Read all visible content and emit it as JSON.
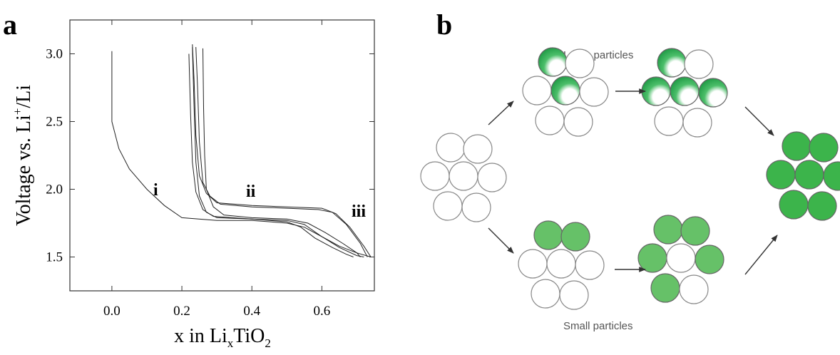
{
  "panel_labels": [
    "a",
    "b"
  ],
  "chart_data": {
    "type": "line",
    "xlabel": [
      "x in Li",
      "x",
      "TiO",
      "2"
    ],
    "ylabel": [
      "Voltage vs. Li",
      "+",
      "/Li"
    ],
    "xlim": [
      -0.12,
      0.75
    ],
    "ylim": [
      1.25,
      3.25
    ],
    "xticks": [
      {
        "value": 0,
        "label": "0.0"
      },
      0.2,
      0.4,
      0.6
    ],
    "yticks": [
      {
        "value": 1.5,
        "label": "1.5"
      },
      {
        "value": 2,
        "label": "2.0"
      },
      2.5,
      {
        "value": 3,
        "label": "3.0"
      }
    ],
    "annotations": [
      "i",
      "ii",
      "iii"
    ],
    "color": "#222222",
    "series": [
      {
        "x": [
          0,
          0,
          0,
          0.02,
          0.05,
          0.1,
          0.15,
          0.2,
          0.3,
          0.4,
          0.5,
          0.55,
          0.6,
          0.65,
          0.7,
          0.74
        ],
        "values": [
          3.02,
          2.8,
          2.5,
          2.3,
          2.15,
          2.0,
          1.88,
          1.79,
          1.77,
          1.77,
          1.75,
          1.72,
          1.65,
          1.58,
          1.53,
          1.5
        ]
      },
      {
        "x": [
          0.74,
          0.72,
          0.68,
          0.64,
          0.6,
          0.5,
          0.4,
          0.3,
          0.27,
          0.25,
          0.24,
          0.235,
          0.23
        ],
        "values": [
          1.5,
          1.58,
          1.72,
          1.82,
          1.86,
          1.87,
          1.88,
          1.9,
          1.97,
          2.1,
          2.4,
          2.8,
          3.07
        ]
      },
      {
        "x": [
          0.23,
          0.235,
          0.24,
          0.25,
          0.27,
          0.3,
          0.4,
          0.5,
          0.55,
          0.6,
          0.65,
          0.7,
          0.72
        ],
        "values": [
          3.05,
          2.6,
          2.2,
          1.95,
          1.83,
          1.79,
          1.78,
          1.77,
          1.74,
          1.65,
          1.57,
          1.51,
          1.5
        ]
      },
      {
        "x": [
          0.73,
          0.71,
          0.67,
          0.63,
          0.59,
          0.5,
          0.4,
          0.31,
          0.28,
          0.26,
          0.25,
          0.245,
          0.24
        ],
        "values": [
          1.5,
          1.6,
          1.74,
          1.83,
          1.85,
          1.86,
          1.87,
          1.89,
          1.95,
          2.05,
          2.35,
          2.75,
          3.05
        ]
      },
      {
        "x": [
          0.26,
          0.262,
          0.265,
          0.27,
          0.29,
          0.32,
          0.4,
          0.5,
          0.56,
          0.61,
          0.66,
          0.7,
          0.71
        ],
        "values": [
          3.04,
          2.6,
          2.25,
          2.0,
          1.87,
          1.81,
          1.79,
          1.78,
          1.75,
          1.68,
          1.6,
          1.53,
          1.5
        ]
      },
      {
        "x": [
          0.22,
          0.225,
          0.23,
          0.24,
          0.26,
          0.29,
          0.4,
          0.5,
          0.54,
          0.58,
          0.63,
          0.67,
          0.69
        ],
        "values": [
          3.0,
          2.55,
          2.2,
          1.98,
          1.85,
          1.8,
          1.78,
          1.76,
          1.72,
          1.64,
          1.57,
          1.52,
          1.5
        ]
      }
    ]
  },
  "diagram": {
    "top_label": "Large particles",
    "bottom_label": "Small particles"
  }
}
